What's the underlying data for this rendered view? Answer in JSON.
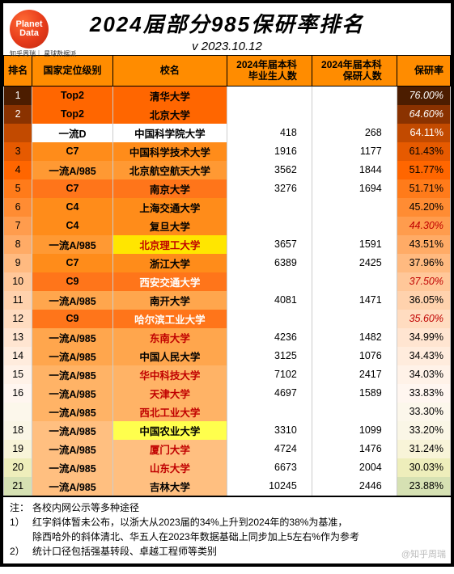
{
  "title": "2024届部分985保研率排名",
  "subtitle": "v 2023.10.12",
  "logo": {
    "line1": "Planet",
    "line2": "Data",
    "sub": "知乎周瑞｜\n星球数据派"
  },
  "columns": [
    "排名",
    "国家定位级别",
    "校名",
    "2024年届本科\n毕业生人数",
    "2024年届本科\n保研人数",
    "保研率"
  ],
  "row_band_colors": [
    "#4c1d00",
    "#8a3200",
    "#c24a00",
    "#e65a00",
    "#ff6600",
    "#ff7b1a",
    "#ff8c33",
    "#ff9c4d",
    "#ffab66",
    "#ffba80",
    "#ffc799",
    "#ffd2ad",
    "#ffdcc0",
    "#ffe5d1",
    "#ffecdd",
    "#fff2e8",
    "#fff6f0",
    "#fcf7eb",
    "#faf6e6",
    "#f8f4d8",
    "#eeeebb",
    "#d6e1b3",
    "#b8d99a",
    "#8fcf7a"
  ],
  "row_text_dark_until": 2,
  "rows": [
    {
      "rank": "1",
      "level": "Top2",
      "level_bg": "#ff6600",
      "school": "清华大学",
      "school_bg": "#ff6600",
      "grads": "",
      "recom": "",
      "rate": "76.00%",
      "rate_style": "red-italic"
    },
    {
      "rank": "2",
      "level": "Top2",
      "level_bg": "#ff6600",
      "school": "北京大学",
      "school_bg": "#ff6600",
      "grads": "",
      "recom": "",
      "rate": "64.60%",
      "rate_style": "red-italic"
    },
    {
      "rank": "",
      "level": "一流D",
      "level_bg": "",
      "school": "中国科学院大学",
      "school_bg": "",
      "school_style": "blue-text",
      "grads": "418",
      "recom": "268",
      "rate": "64.11%"
    },
    {
      "rank": "3",
      "level": "C7",
      "level_bg": "#ff8c1a",
      "school": "中国科学技术大学",
      "school_bg": "#ff8c1a",
      "grads": "1916",
      "recom": "1177",
      "rate": "61.43%"
    },
    {
      "rank": "4",
      "level": "一流A/985",
      "level_bg": "#ff9933",
      "school": "北京航空航天大学",
      "school_bg": "#ff9933",
      "grads": "3562",
      "recom": "1844",
      "rate": "51.77%"
    },
    {
      "rank": "5",
      "level": "C7",
      "level_bg": "#ff751a",
      "school": "南京大学",
      "school_bg": "#ff751a",
      "grads": "3276",
      "recom": "1694",
      "rate": "51.71%"
    },
    {
      "rank": "6",
      "level": "C4",
      "level_bg": "#ff8c1a",
      "school": "上海交通大学",
      "school_bg": "#ff8c1a",
      "grads": "",
      "recom": "",
      "rate": "45.20%"
    },
    {
      "rank": "7",
      "level": "C4",
      "level_bg": "#ff8c1a",
      "school": "复旦大学",
      "school_bg": "#ff8c1a",
      "grads": "",
      "recom": "",
      "rate": "44.30%",
      "rate_style": "red-italic"
    },
    {
      "rank": "8",
      "level": "一流A/985",
      "level_bg": "#ff9933",
      "school": "北京理工大学",
      "school_bg": "#ffe600",
      "school_color": "#c00000",
      "grads": "3657",
      "recom": "1591",
      "rate": "43.51%"
    },
    {
      "rank": "9",
      "level": "C7",
      "level_bg": "#ff8c1a",
      "school": "浙江大学",
      "school_bg": "#ff8c1a",
      "grads": "6389",
      "recom": "2425",
      "rate": "37.96%"
    },
    {
      "rank": "10",
      "level": "C9",
      "level_bg": "#ff751a",
      "school": "西安交通大学",
      "school_bg": "#ff751a",
      "school_color": "#fff",
      "grads": "",
      "recom": "",
      "rate": "37.50%",
      "rate_style": "red-italic"
    },
    {
      "rank": "11",
      "level": "一流A/985",
      "level_bg": "#ffa64d",
      "school": "南开大学",
      "school_bg": "#ffa64d",
      "grads": "4081",
      "recom": "1471",
      "rate": "36.05%"
    },
    {
      "rank": "12",
      "level": "C9",
      "level_bg": "#ff751a",
      "school": "哈尔滨工业大学",
      "school_bg": "#ff751a",
      "school_color": "#fff",
      "grads": "",
      "recom": "",
      "rate": "35.60%",
      "rate_style": "red-italic"
    },
    {
      "rank": "13",
      "level": "一流A/985",
      "level_bg": "#ffa64d",
      "school": "东南大学",
      "school_bg": "#ffa64d",
      "school_color": "#c00000",
      "grads": "4236",
      "recom": "1482",
      "rate": "34.99%"
    },
    {
      "rank": "14",
      "level": "一流A/985",
      "level_bg": "#ffa64d",
      "school": "中国人民大学",
      "school_bg": "#ffa64d",
      "grads": "3125",
      "recom": "1076",
      "rate": "34.43%"
    },
    {
      "rank": "15",
      "level": "一流A/985",
      "level_bg": "#ffb366",
      "school": "华中科技大学",
      "school_bg": "#ffb366",
      "school_color": "#c00000",
      "grads": "7102",
      "recom": "2417",
      "rate": "34.03%"
    },
    {
      "rank": "16",
      "level": "一流A/985",
      "level_bg": "#ffb366",
      "school": "天津大学",
      "school_bg": "#ffb366",
      "school_color": "#c00000",
      "grads": "4697",
      "recom": "1589",
      "rate": "33.83%"
    },
    {
      "rank": "",
      "level": "一流A/985",
      "level_bg": "#ffb366",
      "school": "西北工业大学",
      "school_bg": "#ffb366",
      "school_color": "#c00000",
      "grads": "",
      "recom": "",
      "rate": "33.30%"
    },
    {
      "rank": "18",
      "level": "一流A/985",
      "level_bg": "#ffbf80",
      "school": "中国农业大学",
      "school_bg": "#ffff4d",
      "grads": "3310",
      "recom": "1099",
      "rate": "33.20%"
    },
    {
      "rank": "19",
      "level": "一流A/985",
      "level_bg": "#ffbf80",
      "school": "厦门大学",
      "school_bg": "#ffbf80",
      "school_color": "#c00000",
      "grads": "4724",
      "recom": "1476",
      "rate": "31.24%"
    },
    {
      "rank": "20",
      "level": "一流A/985",
      "level_bg": "#ffbf80",
      "school": "山东大学",
      "school_bg": "#ffbf80",
      "school_color": "#c00000",
      "grads": "6673",
      "recom": "2004",
      "rate": "30.03%"
    },
    {
      "rank": "21",
      "level": "一流A/985",
      "level_bg": "#ffbf80",
      "school": "吉林大学",
      "school_bg": "#ffbf80",
      "grads": "10245",
      "recom": "2446",
      "rate": "23.88%"
    }
  ],
  "footer": {
    "note": "注：",
    "note_text": "各校内网公示等多种途径",
    "n1": "1）",
    "n1_text": "红字斜体暂未公布，以浙大从2023届的34%上升到2024年的38%为基准，\n除西哈外的斜体清北、华五人在2023年数据基础上同步加上5左右%作为参考",
    "n2": "2）",
    "n2_text": "统计口径包括强基转段、卓越工程师等类别"
  },
  "watermark": "@知乎周瑞"
}
